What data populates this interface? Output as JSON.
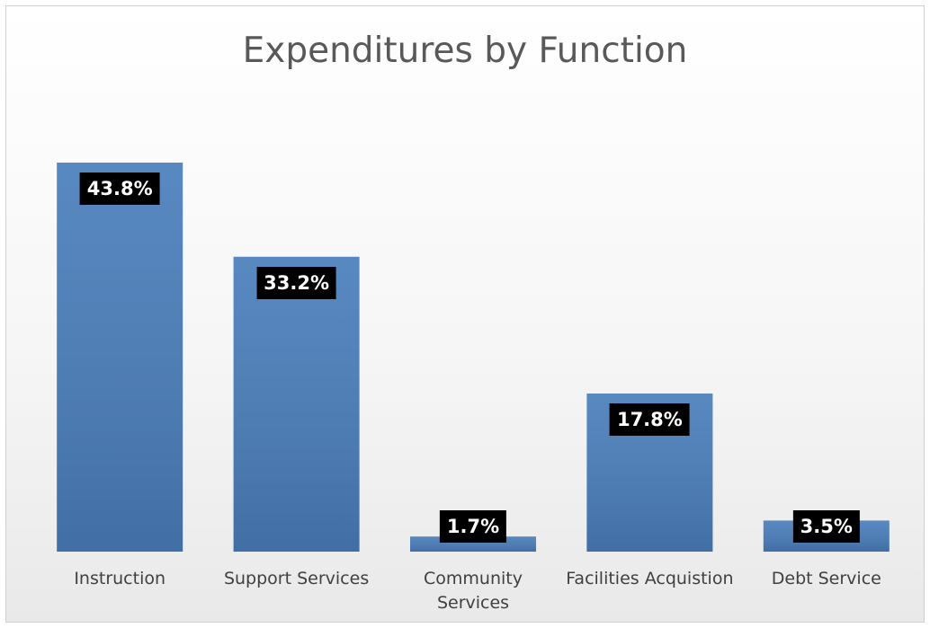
{
  "chart_data": {
    "type": "bar",
    "title": "Expenditures by Function",
    "categories": [
      "Instruction",
      "Support Services",
      "Community Services",
      "Facilities Acquistion",
      "Debt Service"
    ],
    "values": [
      43.8,
      33.2,
      1.7,
      17.8,
      3.5
    ],
    "value_labels": [
      "43.8%",
      "33.2%",
      "1.7%",
      "17.8%",
      "3.5%"
    ],
    "color": "#4a7ebb",
    "grid": false
  }
}
